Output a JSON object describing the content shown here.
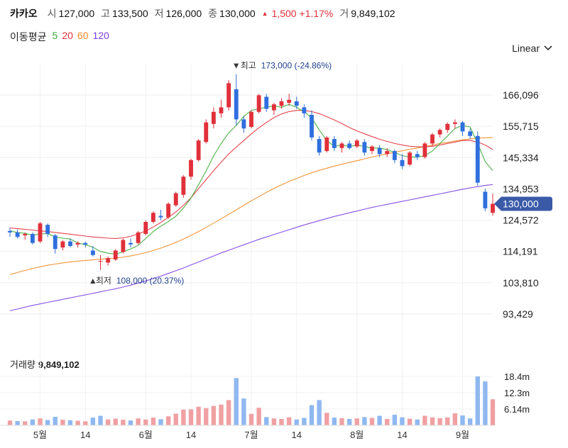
{
  "header": {
    "name": "카카오",
    "open_label": "시",
    "open": "127,000",
    "high_label": "고",
    "high": "133,500",
    "low_label": "저",
    "low": "126,000",
    "close_label": "종",
    "close": "130,000",
    "change": "1,500 +1.17%",
    "volume_label": "거",
    "volume": "9,849,102"
  },
  "ma_legend": {
    "title": "이동평균",
    "items": [
      {
        "label": "5",
        "color": "#3aaa35"
      },
      {
        "label": "20",
        "color": "#e0303a"
      },
      {
        "label": "60",
        "color": "#f08a24"
      },
      {
        "label": "120",
        "color": "#7b3fe4"
      }
    ]
  },
  "scale_button": {
    "label": "Linear"
  },
  "volume_panel": {
    "title": "거래량",
    "value": "9,849,102"
  },
  "colors": {
    "up": "#e0303a",
    "down": "#2f6fde",
    "vol_up": "#f0a0a2",
    "vol_down": "#8fb8f0",
    "badge": "#3a5aa8"
  },
  "chart_data": {
    "type": "candlestick",
    "y_ticks": [
      "166,096",
      "155,715",
      "145,334",
      "134,953",
      "124,572",
      "114,191",
      "103,810",
      "93,429"
    ],
    "y_tick_values": [
      166096,
      155715,
      145334,
      134953,
      124572,
      114191,
      103810,
      93429
    ],
    "x_ticks": [
      {
        "label": "5월",
        "index": 4
      },
      {
        "label": "14",
        "index": 10
      },
      {
        "label": "6월",
        "index": 18
      },
      {
        "label": "14",
        "index": 24
      },
      {
        "label": "7월",
        "index": 32
      },
      {
        "label": "14",
        "index": 38
      },
      {
        "label": "8월",
        "index": 46
      },
      {
        "label": "14",
        "index": 52
      },
      {
        "label": "9월",
        "index": 60
      }
    ],
    "last_price_badge": "130,000",
    "max_annotation": {
      "label": "최고",
      "text": "173,000 (-24.86%)",
      "value": 173000,
      "index": 30
    },
    "min_annotation": {
      "label": "최저",
      "text": "108,000 (20.37%)",
      "value": 108000,
      "index": 11
    },
    "volume_ticks": [
      "18.4m",
      "12.3m",
      "6.14m"
    ],
    "volume_tick_values": [
      18.4,
      12.3,
      6.14
    ],
    "candles": [
      [
        121000,
        122000,
        119000,
        120500
      ],
      [
        120500,
        121500,
        118500,
        119000
      ],
      [
        119500,
        120500,
        118000,
        120000
      ],
      [
        120000,
        120500,
        116500,
        117000
      ],
      [
        117500,
        124000,
        117000,
        123500
      ],
      [
        123000,
        123500,
        119000,
        120000
      ],
      [
        119500,
        120000,
        113500,
        115000
      ],
      [
        115500,
        118000,
        114500,
        117500
      ],
      [
        117500,
        118500,
        115500,
        116000
      ],
      [
        116500,
        117500,
        115500,
        117000
      ],
      [
        117000,
        117500,
        115500,
        116500
      ],
      [
        114500,
        116000,
        112500,
        113000
      ],
      [
        111000,
        113000,
        108000,
        111000
      ],
      [
        110500,
        112500,
        109500,
        112000
      ],
      [
        111500,
        115000,
        111000,
        114500
      ],
      [
        114000,
        118500,
        113500,
        118000
      ],
      [
        117000,
        118500,
        115500,
        116500
      ],
      [
        117000,
        121000,
        116500,
        120500
      ],
      [
        120000,
        124500,
        119500,
        124000
      ],
      [
        124000,
        127500,
        123500,
        127000
      ],
      [
        126000,
        128000,
        124500,
        125500
      ],
      [
        125500,
        130500,
        125000,
        130000
      ],
      [
        129500,
        134000,
        129000,
        133500
      ],
      [
        133000,
        139500,
        132000,
        139000
      ],
      [
        139000,
        145000,
        138000,
        144500
      ],
      [
        144500,
        151500,
        144000,
        151000
      ],
      [
        150500,
        158000,
        150000,
        157000
      ],
      [
        156500,
        162000,
        155000,
        160500
      ],
      [
        160000,
        164500,
        158500,
        162000
      ],
      [
        162000,
        171000,
        161000,
        170000
      ],
      [
        168000,
        173000,
        156000,
        158000
      ],
      [
        158000,
        159000,
        153500,
        155000
      ],
      [
        155500,
        161000,
        155000,
        160500
      ],
      [
        160500,
        166500,
        160000,
        166000
      ],
      [
        165500,
        166500,
        160500,
        161500
      ],
      [
        161000,
        163500,
        159500,
        163000
      ],
      [
        162500,
        165000,
        161500,
        164000
      ],
      [
        163500,
        166500,
        162500,
        164500
      ],
      [
        164000,
        165500,
        161500,
        162500
      ],
      [
        162000,
        163000,
        158500,
        160000
      ],
      [
        159500,
        161000,
        151000,
        152000
      ],
      [
        151500,
        152500,
        146000,
        147000
      ],
      [
        147500,
        152500,
        147000,
        152000
      ],
      [
        151500,
        152500,
        147500,
        148500
      ],
      [
        148500,
        150500,
        147000,
        150000
      ],
      [
        150000,
        151000,
        148000,
        148500
      ],
      [
        149000,
        151500,
        148500,
        151000
      ],
      [
        150500,
        151500,
        146000,
        147000
      ],
      [
        147500,
        149500,
        146500,
        149000
      ],
      [
        148500,
        149500,
        145500,
        146500
      ],
      [
        146500,
        148500,
        145500,
        147500
      ],
      [
        147500,
        148000,
        143500,
        144500
      ],
      [
        144500,
        146500,
        141500,
        142500
      ],
      [
        143000,
        147500,
        142500,
        147000
      ],
      [
        146500,
        147500,
        144500,
        145500
      ],
      [
        145500,
        150500,
        145000,
        150000
      ],
      [
        150000,
        153500,
        149000,
        153000
      ],
      [
        153000,
        155000,
        152000,
        154500
      ],
      [
        154500,
        157000,
        153500,
        156500
      ],
      [
        156500,
        158000,
        155000,
        157000
      ],
      [
        157000,
        157500,
        152500,
        154000
      ],
      [
        154000,
        155000,
        151500,
        152500
      ],
      [
        152500,
        154000,
        136000,
        137000
      ],
      [
        134000,
        135000,
        127500,
        128500
      ],
      [
        127000,
        133500,
        126000,
        130000
      ]
    ],
    "volumes": [
      [
        1.8,
        "u"
      ],
      [
        1.6,
        "d"
      ],
      [
        1.5,
        "u"
      ],
      [
        2.2,
        "d"
      ],
      [
        2.6,
        "u"
      ],
      [
        2.0,
        "d"
      ],
      [
        3.2,
        "d"
      ],
      [
        2.1,
        "u"
      ],
      [
        1.9,
        "d"
      ],
      [
        1.7,
        "u"
      ],
      [
        1.5,
        "u"
      ],
      [
        2.9,
        "d"
      ],
      [
        3.6,
        "d"
      ],
      [
        2.2,
        "u"
      ],
      [
        2.5,
        "u"
      ],
      [
        2.1,
        "u"
      ],
      [
        1.8,
        "d"
      ],
      [
        2.6,
        "u"
      ],
      [
        2.2,
        "u"
      ],
      [
        2.9,
        "u"
      ],
      [
        2.3,
        "d"
      ],
      [
        3.4,
        "u"
      ],
      [
        4.4,
        "u"
      ],
      [
        5.9,
        "u"
      ],
      [
        6.0,
        "u"
      ],
      [
        7.0,
        "u"
      ],
      [
        6.5,
        "u"
      ],
      [
        7.3,
        "u"
      ],
      [
        7.8,
        "u"
      ],
      [
        9.5,
        "u"
      ],
      [
        17.8,
        "d"
      ],
      [
        10.1,
        "d"
      ],
      [
        4.3,
        "u"
      ],
      [
        6.6,
        "u"
      ],
      [
        3.1,
        "d"
      ],
      [
        2.6,
        "u"
      ],
      [
        2.4,
        "u"
      ],
      [
        3.0,
        "u"
      ],
      [
        2.2,
        "d"
      ],
      [
        2.8,
        "d"
      ],
      [
        7.6,
        "d"
      ],
      [
        9.5,
        "d"
      ],
      [
        4.7,
        "u"
      ],
      [
        2.9,
        "d"
      ],
      [
        2.7,
        "u"
      ],
      [
        2.4,
        "d"
      ],
      [
        2.6,
        "u"
      ],
      [
        3.1,
        "d"
      ],
      [
        2.8,
        "u"
      ],
      [
        3.6,
        "d"
      ],
      [
        2.4,
        "u"
      ],
      [
        4.0,
        "d"
      ],
      [
        3.0,
        "d"
      ],
      [
        2.5,
        "u"
      ],
      [
        2.2,
        "d"
      ],
      [
        3.6,
        "u"
      ],
      [
        3.0,
        "u"
      ],
      [
        2.7,
        "u"
      ],
      [
        3.0,
        "u"
      ],
      [
        4.5,
        "u"
      ],
      [
        3.7,
        "d"
      ],
      [
        2.6,
        "d"
      ],
      [
        18.4,
        "d"
      ],
      [
        16.5,
        "d"
      ],
      [
        9.8,
        "u"
      ]
    ],
    "ma5": [
      121000,
      120500,
      120200,
      119500,
      120000,
      120100,
      119000,
      118600,
      118300,
      117000,
      116400,
      115600,
      114200,
      113600,
      113300,
      114100,
      115000,
      116200,
      118500,
      120800,
      122600,
      124100,
      125900,
      128600,
      131900,
      136300,
      140900,
      145900,
      150000,
      153500,
      156000,
      159000,
      161000,
      161500,
      162000,
      162500,
      162000,
      163000,
      162000,
      160500,
      158500,
      154500,
      151000,
      149000,
      149500,
      149000,
      149500,
      149000,
      148500,
      148500,
      148000,
      147000,
      146000,
      145500,
      145500,
      146000,
      147500,
      150000,
      152500,
      155000,
      156000,
      155500,
      150000,
      144000,
      141000
    ],
    "ma20": [
      122000,
      121800,
      121500,
      121300,
      121000,
      120800,
      120500,
      120200,
      119900,
      119600,
      119300,
      119000,
      118800,
      118600,
      118500,
      118700,
      119200,
      120000,
      121000,
      122300,
      123800,
      125500,
      127300,
      129500,
      132000,
      135000,
      138000,
      141000,
      143800,
      146500,
      148800,
      151000,
      153200,
      155200,
      157000,
      158600,
      159800,
      160600,
      161000,
      161000,
      160600,
      159900,
      158900,
      157800,
      156600,
      155300,
      154200,
      153200,
      152300,
      151400,
      150700,
      150000,
      149500,
      149100,
      148900,
      148900,
      149100,
      149500,
      150000,
      150500,
      151000,
      151000,
      150500,
      149500,
      148000
    ],
    "ma60": [
      106500,
      107200,
      107900,
      108500,
      109100,
      109600,
      110000,
      110400,
      110700,
      111000,
      111200,
      111400,
      111600,
      111800,
      112000,
      112300,
      112700,
      113200,
      113800,
      114500,
      115300,
      116200,
      117200,
      118300,
      119500,
      120800,
      122200,
      123600,
      125000,
      126500,
      128000,
      129500,
      131000,
      132400,
      133800,
      135100,
      136300,
      137400,
      138400,
      139400,
      140300,
      141100,
      141800,
      142500,
      143100,
      143700,
      144300,
      144900,
      145500,
      146100,
      146600,
      147100,
      147600,
      148100,
      148500,
      149000,
      149500,
      150000,
      150400,
      150800,
      151200,
      151500,
      151800,
      151900,
      152000
    ],
    "ma120": [
      94500,
      95100,
      95700,
      96300,
      96800,
      97300,
      97800,
      98300,
      98800,
      99300,
      99800,
      100300,
      100800,
      101300,
      101800,
      102400,
      103000,
      103700,
      104400,
      105200,
      106000,
      106900,
      107800,
      108700,
      109700,
      110700,
      111700,
      112700,
      113700,
      114600,
      115500,
      116400,
      117300,
      118200,
      119000,
      119800,
      120600,
      121400,
      122200,
      123000,
      123700,
      124400,
      125100,
      125800,
      126400,
      127000,
      127600,
      128200,
      128800,
      129300,
      129800,
      130300,
      130800,
      131300,
      131800,
      132300,
      132800,
      133300,
      133800,
      134300,
      134800,
      135300,
      135700,
      136100,
      136400
    ]
  }
}
